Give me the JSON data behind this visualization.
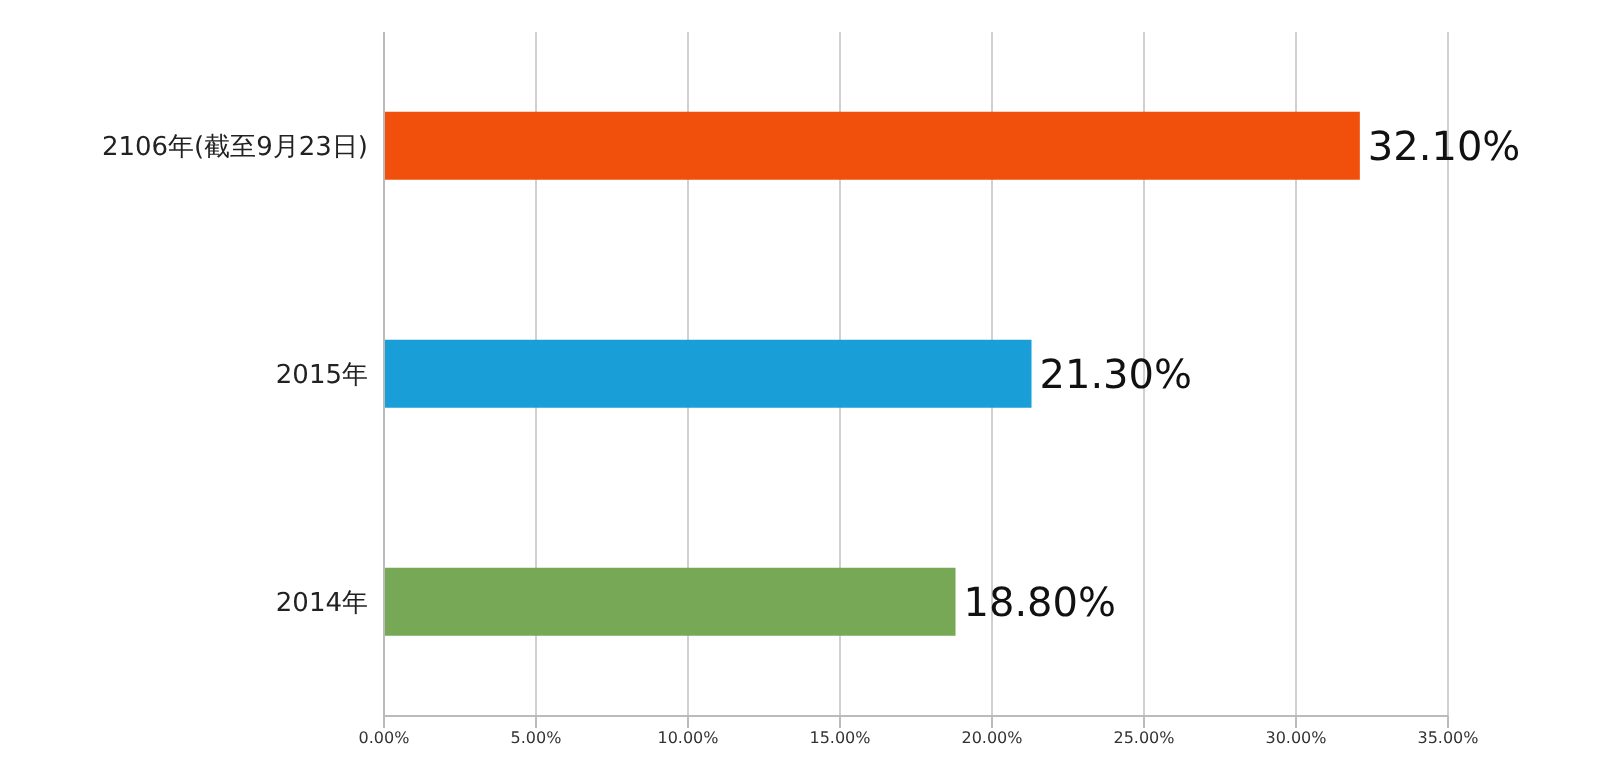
{
  "chart_data": {
    "type": "bar",
    "orientation": "horizontal",
    "categories": [
      "2106年(截至9月23日)",
      "2015年",
      "2014年"
    ],
    "values": [
      32.1,
      21.3,
      18.8
    ],
    "colors": [
      "#f0500c",
      "#1a9ed8",
      "#76a856"
    ],
    "value_labels": [
      "32.10%",
      "21.30%",
      "18.80%"
    ],
    "xlim": [
      0,
      35
    ],
    "xticks": [
      {
        "value": 0,
        "label": "0.00%"
      },
      {
        "value": 5,
        "label": "5.00%"
      },
      {
        "value": 10,
        "label": "10.00%"
      },
      {
        "value": 15,
        "label": "15.00%"
      },
      {
        "value": 20,
        "label": "20.00%"
      },
      {
        "value": 25,
        "label": "25.00%"
      },
      {
        "value": 30,
        "label": "30.00%"
      },
      {
        "value": 35,
        "label": "35.00%"
      }
    ],
    "grid": "x"
  }
}
